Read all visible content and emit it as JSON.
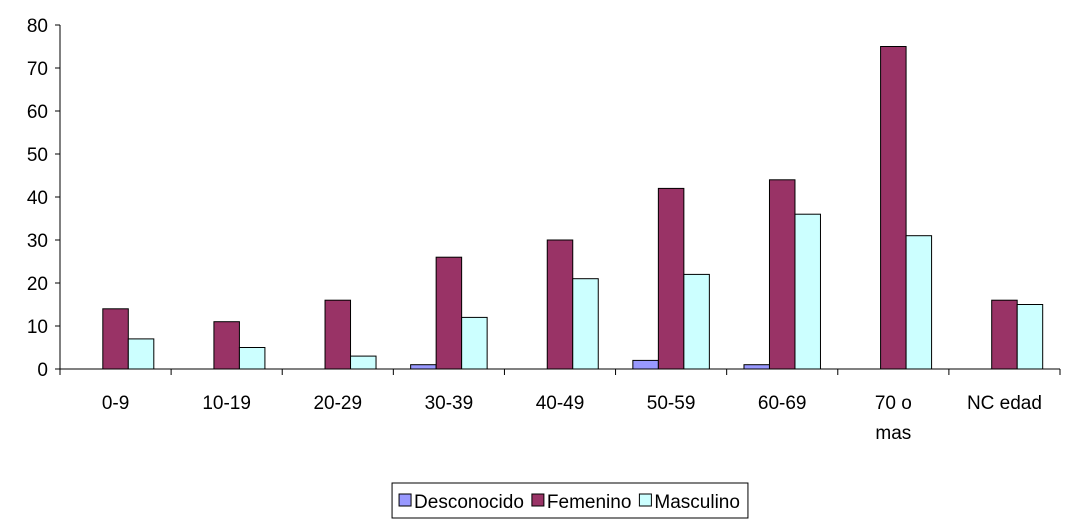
{
  "chart_data": {
    "type": "bar",
    "categories": [
      "0-9",
      "10-19",
      "20-29",
      "30-39",
      "40-49",
      "50-59",
      "60-69",
      "70 o mas",
      "NC edad"
    ],
    "series": [
      {
        "name": "Desconocido",
        "color": "#9999ff",
        "values": [
          0,
          0,
          0,
          1,
          0,
          2,
          1,
          0,
          0
        ]
      },
      {
        "name": "Femenino",
        "color": "#993366",
        "values": [
          14,
          11,
          16,
          26,
          30,
          42,
          44,
          75,
          16
        ]
      },
      {
        "name": "Masculino",
        "color": "#ccffff",
        "values": [
          7,
          5,
          3,
          12,
          21,
          22,
          36,
          31,
          15
        ]
      }
    ],
    "ylim": [
      0,
      80
    ],
    "yticks": [
      0,
      10,
      20,
      30,
      40,
      50,
      60,
      70,
      80
    ],
    "grid": false,
    "legend": "bottom"
  }
}
